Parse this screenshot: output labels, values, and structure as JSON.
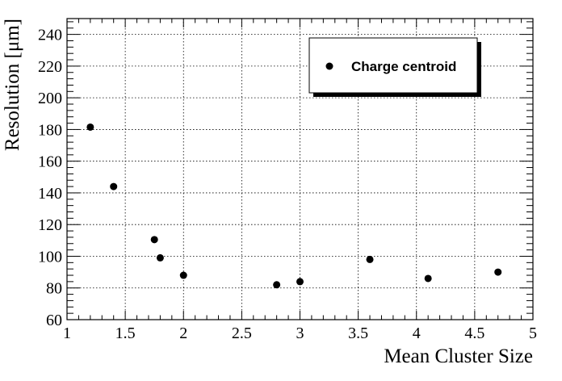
{
  "chart_data": {
    "type": "scatter",
    "xlabel": "Mean Cluster Size",
    "ylabel": "Resolution [μm]",
    "xlim": [
      1,
      5
    ],
    "ylim": [
      60,
      250
    ],
    "x_ticks": [
      1,
      1.5,
      2,
      2.5,
      3,
      3.5,
      4,
      4.5,
      5
    ],
    "x_tick_labels": [
      "1",
      "1.5",
      "2",
      "2.5",
      "3",
      "3.5",
      "4",
      "4.5",
      "5"
    ],
    "y_ticks": [
      60,
      80,
      100,
      120,
      140,
      160,
      180,
      200,
      220,
      240
    ],
    "y_tick_labels": [
      "60",
      "80",
      "100",
      "120",
      "140",
      "160",
      "180",
      "200",
      "220",
      "240"
    ],
    "grid": true,
    "legend_position": "top-right",
    "series": [
      {
        "name": "Charge centroid",
        "color": "#000000",
        "marker": "filled-circle",
        "points": [
          {
            "x": 1.2,
            "y": 181.5
          },
          {
            "x": 1.4,
            "y": 144
          },
          {
            "x": 1.75,
            "y": 110.5
          },
          {
            "x": 1.8,
            "y": 99
          },
          {
            "x": 2.0,
            "y": 88
          },
          {
            "x": 2.8,
            "y": 82
          },
          {
            "x": 3.0,
            "y": 84
          },
          {
            "x": 3.6,
            "y": 98
          },
          {
            "x": 4.1,
            "y": 86
          },
          {
            "x": 4.7,
            "y": 90
          }
        ]
      }
    ]
  }
}
